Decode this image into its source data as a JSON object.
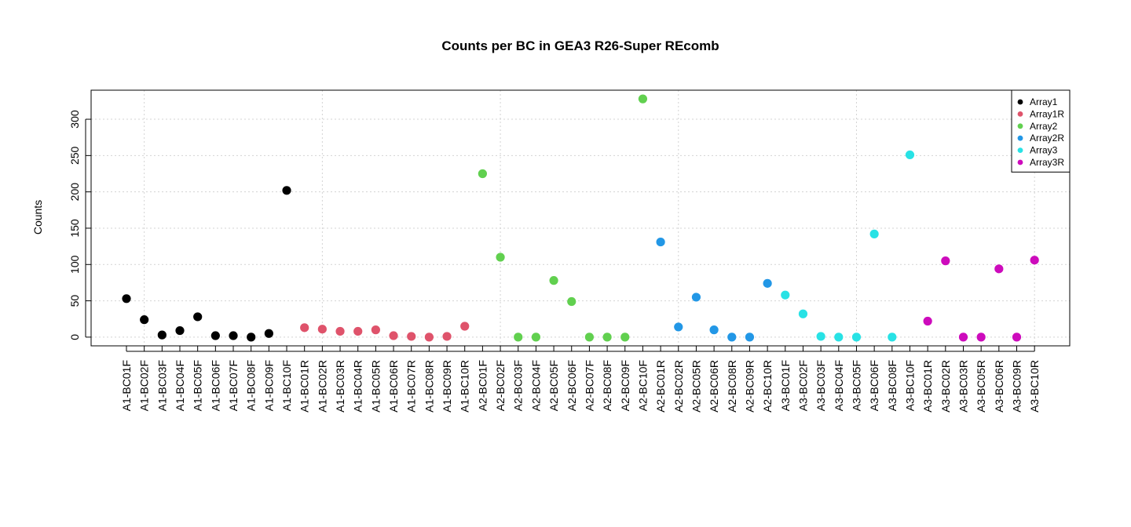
{
  "chart_data": {
    "type": "scatter",
    "title": "Counts per BC in GEA3 R26-Super REcomb",
    "xlabel": "",
    "ylabel": "Counts",
    "ylim": [
      -12,
      340
    ],
    "yticks": [
      0,
      50,
      100,
      150,
      200,
      250,
      300
    ],
    "grid": true,
    "legend_position": "top-right",
    "categories": [
      "A1-BC01F",
      "A1-BC02F",
      "A1-BC03F",
      "A1-BC04F",
      "A1-BC05F",
      "A1-BC06F",
      "A1-BC07F",
      "A1-BC08F",
      "A1-BC09F",
      "A1-BC10F",
      "A1-BC01R",
      "A1-BC02R",
      "A1-BC03R",
      "A1-BC04R",
      "A1-BC05R",
      "A1-BC06R",
      "A1-BC07R",
      "A1-BC08R",
      "A1-BC09R",
      "A1-BC10R",
      "A2-BC01F",
      "A2-BC02F",
      "A2-BC03F",
      "A2-BC04F",
      "A2-BC05F",
      "A2-BC06F",
      "A2-BC07F",
      "A2-BC08F",
      "A2-BC09F",
      "A2-BC10F",
      "A2-BC01R",
      "A2-BC02R",
      "A2-BC05R",
      "A2-BC06R",
      "A2-BC08R",
      "A2-BC09R",
      "A2-BC10R",
      "A3-BC01F",
      "A3-BC02F",
      "A3-BC03F",
      "A3-BC04F",
      "A3-BC05F",
      "A3-BC06F",
      "A3-BC08F",
      "A3-BC10F",
      "A3-BC01R",
      "A3-BC02R",
      "A3-BC03R",
      "A3-BC05R",
      "A3-BC06R",
      "A3-BC09R",
      "A3-BC10R"
    ],
    "series": [
      {
        "name": "Array1",
        "color": "#000000",
        "start": 0,
        "values": [
          53,
          24,
          3,
          9,
          28,
          2,
          2,
          0,
          5,
          202
        ]
      },
      {
        "name": "Array1R",
        "color": "#DF536B",
        "start": 10,
        "values": [
          13,
          11,
          8,
          8,
          10,
          2,
          1,
          0,
          1,
          15
        ]
      },
      {
        "name": "Array2",
        "color": "#61D04F",
        "start": 20,
        "values": [
          225,
          110,
          0,
          0,
          78,
          49,
          0,
          0,
          0,
          328
        ]
      },
      {
        "name": "Array2R",
        "color": "#2297E6",
        "start": 30,
        "values": [
          131,
          14,
          55,
          10,
          0,
          0,
          74
        ]
      },
      {
        "name": "Array3",
        "color": "#28E2E5",
        "start": 37,
        "values": [
          58,
          32,
          1,
          0,
          0,
          142,
          0,
          251
        ]
      },
      {
        "name": "Array3R",
        "color": "#CD0BBC",
        "start": 45,
        "values": [
          22,
          105,
          0,
          0,
          94,
          0,
          106
        ]
      }
    ]
  }
}
